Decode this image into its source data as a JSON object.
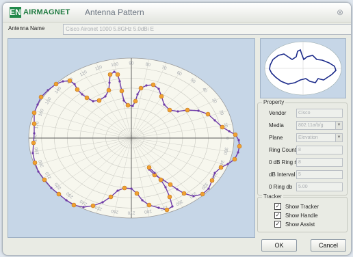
{
  "window": {
    "logo_mark": "EN",
    "brand": "AIRMAGNET",
    "title": "Antenna Pattern",
    "close_glyph": "⊗"
  },
  "antenna": {
    "label": "Antenna Name",
    "value": "Cisco Aironet 1000 5.8GHz 5.0dBi E"
  },
  "plot": {
    "angle_labels": [
      "0",
      "10",
      "20",
      "30",
      "40",
      "50",
      "60",
      "70",
      "80",
      "90",
      "100",
      "110",
      "120",
      "130",
      "140",
      "150",
      "160",
      "170",
      "180",
      "190",
      "200",
      "210",
      "220",
      "230",
      "240",
      "250",
      "260",
      "270",
      "280",
      "290",
      "300",
      "310",
      "320",
      "330",
      "340",
      "350"
    ]
  },
  "property": {
    "legend": "Property",
    "fields": [
      {
        "label": "Vendor",
        "value": "Cisco",
        "dropdown": false
      },
      {
        "label": "Media",
        "value": "802.11a/b/g",
        "dropdown": true
      },
      {
        "label": "Plane",
        "value": "Elevation",
        "dropdown": true
      },
      {
        "label": "Ring Count",
        "value": "8",
        "dropdown": false
      },
      {
        "label": "0 dB Ring #",
        "value": "8",
        "dropdown": false
      },
      {
        "label": "dB Interval",
        "value": "5",
        "dropdown": false
      },
      {
        "label": "0 Ring db",
        "value": "5.00",
        "dropdown": false
      }
    ]
  },
  "tracker": {
    "legend": "Tracker",
    "options": [
      {
        "label": "Show Tracker",
        "checked": true
      },
      {
        "label": "Show Handle",
        "checked": true
      },
      {
        "label": "Show Assist",
        "checked": true
      }
    ],
    "check_glyph": "✓"
  },
  "buttons": {
    "ok": "OK",
    "cancel": "Cancel"
  },
  "colors": {
    "pattern_line": "#6e3aa8",
    "handle": "#f0a030",
    "ring_fill": "#f7f7ee",
    "panel_bg": "#c6d6e7",
    "thumb_line": "#1b2a8a"
  }
}
